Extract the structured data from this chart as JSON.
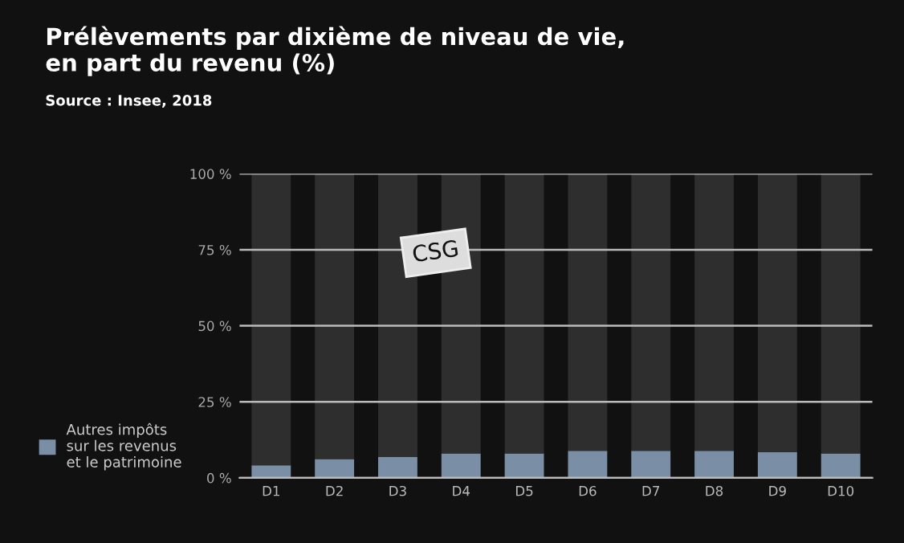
{
  "chart_data": {
    "type": "bar",
    "title": "Prélèvements par dixième de niveau de vie,\nen part du revenu (%)",
    "categories": [
      "D1",
      "D2",
      "D3",
      "D4",
      "D5",
      "D6",
      "D7",
      "D8",
      "D9",
      "D10"
    ],
    "stacked": true,
    "series": [
      {
        "name": "Autres impôts\nsur les revenus\net le patrimoine",
        "color": "#7a8ea6",
        "values": [
          4.1,
          6.2,
          6.9,
          8.0,
          8.0,
          8.9,
          8.9,
          8.9,
          8.5,
          8.0
        ]
      },
      {
        "color": "#2e2e2e",
        "values": [
          95.9,
          93.8,
          93.1,
          92.0,
          92.0,
          91.1,
          91.1,
          91.1,
          91.5,
          92.0
        ]
      }
    ],
    "ylim": [
      0,
      100
    ],
    "yticks": [
      {
        "value": 0,
        "label": "0 %"
      },
      {
        "value": 25,
        "label": "25 %"
      },
      {
        "value": 50,
        "label": "50 %"
      },
      {
        "value": 75,
        "label": "75 %"
      },
      {
        "value": 100,
        "label": "100 %"
      }
    ],
    "grid": "y",
    "legend": "left",
    "annotations": [
      "Source : Insee, 2018",
      "CSG"
    ]
  }
}
